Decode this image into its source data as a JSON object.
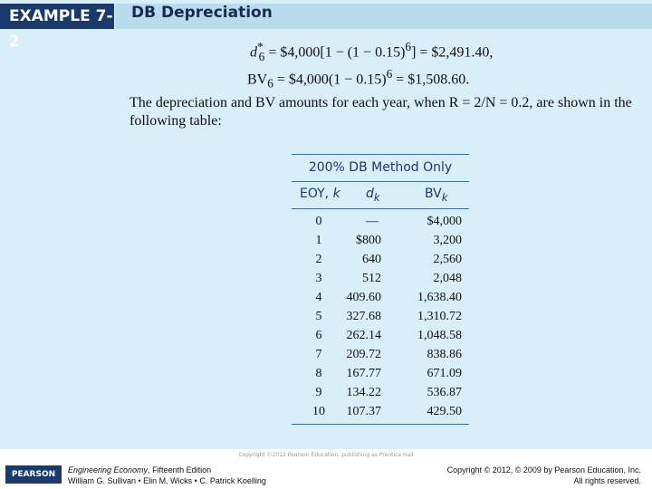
{
  "header": {
    "tag": "EXAMPLE 7-2",
    "title": "DB Depreciation"
  },
  "equations": [
    {
      "lhs": "d",
      "lhs_sup": "*",
      "lhs_sub": "6",
      "rhs_a": " = $4,000[1 − (1 − 0.15)",
      "rhs_sup": "6",
      "rhs_b": "] = $2,491.40,"
    },
    {
      "lhs": "BV",
      "lhs_sub": "6",
      "rhs_a": " = $4,000(1 − 0.15)",
      "rhs_sup": "6",
      "rhs_b": " = $1,508.60."
    }
  ],
  "paragraph": "The depreciation and BV amounts for each year, when R = 2/N = 0.2, are shown in the following table:",
  "table": {
    "title": "200% DB Method Only",
    "columns": [
      {
        "text": "EOY, ",
        "var": "k"
      },
      {
        "var": "d",
        "sub": "k"
      },
      {
        "text": "BV",
        "sub": "k"
      }
    ],
    "rows": [
      [
        "0",
        "—",
        "$4,000"
      ],
      [
        "1",
        "$800",
        "3,200"
      ],
      [
        "2",
        "640",
        "2,560"
      ],
      [
        "3",
        "512",
        "2,048"
      ],
      [
        "4",
        "409.60",
        "1,638.40"
      ],
      [
        "5",
        "327.68",
        "1,310.72"
      ],
      [
        "6",
        "262.14",
        "1,048.58"
      ],
      [
        "7",
        "209.72",
        "838.86"
      ],
      [
        "8",
        "167.77",
        "671.09"
      ],
      [
        "9",
        "134.22",
        "536.87"
      ],
      [
        "10",
        "107.37",
        "429.50"
      ]
    ]
  },
  "copyright_small": "Copyright ©2012 Pearson Education, publishing as Prentice Hall",
  "footer": {
    "logo": "PEARSON",
    "book": "Engineering Economy",
    "edition": ", Fifteenth Edition",
    "authors": "William G. Sullivan • Elin M. Wicks • C. Patrick Koelling",
    "copyright": "Copyright © 2012, © 2009 by Pearson Education, Inc.",
    "rights": "All rights reserved."
  }
}
